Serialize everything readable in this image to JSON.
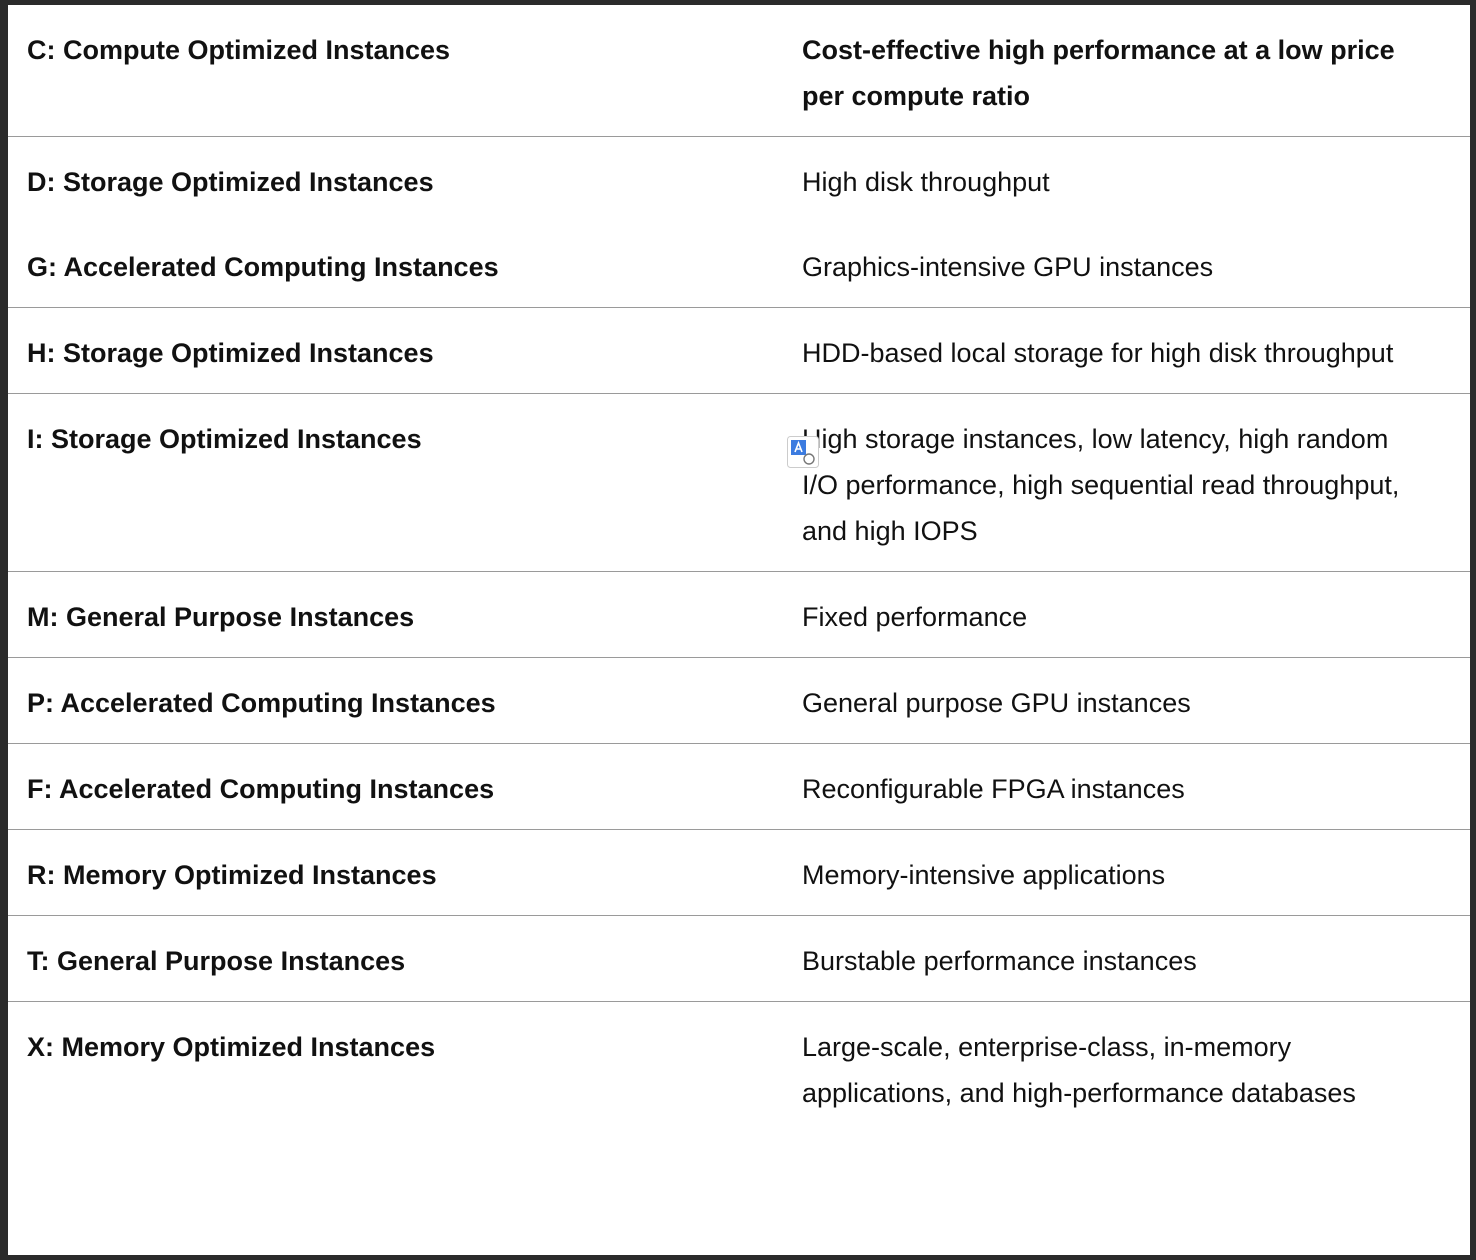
{
  "table": {
    "header": [
      "C: Compute Optimized Instances",
      "Cost-effective high performance at a low price per compute ratio"
    ],
    "groups": [
      [
        [
          "D: Storage Optimized Instances",
          "High disk throughput"
        ],
        [
          "G: Accelerated Computing Instances",
          "Graphics-intensive GPU instances"
        ]
      ],
      [
        [
          "H: Storage Optimized Instances",
          "HDD-based local storage for high disk throughput"
        ]
      ],
      [
        [
          "I: Storage Optimized Instances",
          "High storage instances, low latency, high random I/O performance, high sequential read throughput, and high IOPS"
        ]
      ],
      [
        [
          "M: General Purpose Instances",
          "Fixed performance"
        ]
      ],
      [
        [
          "P: Accelerated Computing Instances",
          "General purpose GPU instances"
        ]
      ],
      [
        [
          "F: Accelerated Computing Instances",
          "Reconfigurable FPGA instances"
        ]
      ],
      [
        [
          "R: Memory Optimized Instances",
          "Memory-intensive applications"
        ]
      ],
      [
        [
          "T: General Purpose Instances",
          "Burstable performance instances"
        ]
      ],
      [
        [
          "X: Memory Optimized Instances",
          "Large-scale, enterprise-class, in-memory applications, and high-performance databases"
        ]
      ]
    ]
  }
}
